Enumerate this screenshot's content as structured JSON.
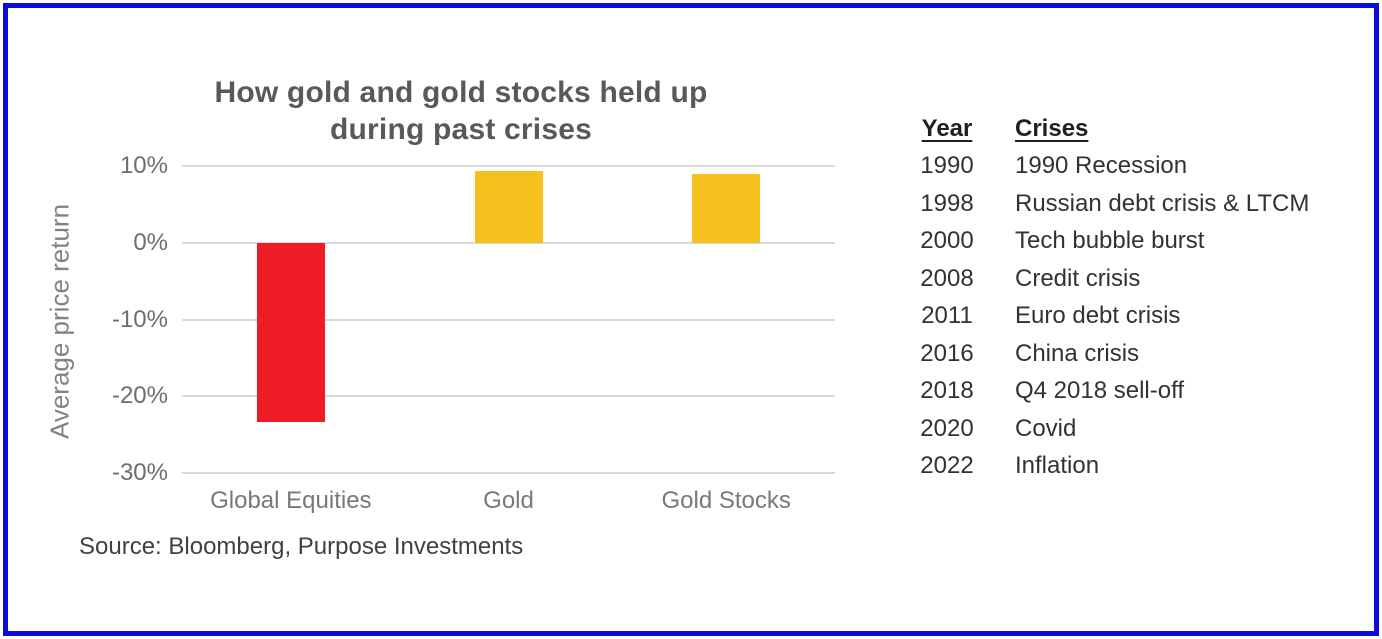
{
  "chart_data": {
    "type": "bar",
    "title": "How gold and gold stocks held up during past crises",
    "categories": [
      "Global Equities",
      "Gold",
      "Gold Stocks"
    ],
    "values": [
      -23.3,
      9.4,
      9.0
    ],
    "bar_colors": [
      "#ee1c25",
      "#f5c11d",
      "#f5c11d"
    ],
    "ylabel": "Average price return",
    "ylim": [
      -30,
      10
    ],
    "yticks": [
      10,
      0,
      -10,
      -20,
      -30
    ],
    "ytick_suffix": "%",
    "grid": true,
    "legend_position": "none",
    "source": "Source: Bloomberg, Purpose Investments"
  },
  "table": {
    "columns": [
      "Year",
      "Crises"
    ],
    "rows": [
      [
        "1990",
        "1990 Recession"
      ],
      [
        "1998",
        "Russian debt crisis & LTCM"
      ],
      [
        "2000",
        "Tech bubble burst"
      ],
      [
        "2008",
        "Credit crisis"
      ],
      [
        "2011",
        "Euro debt crisis"
      ],
      [
        "2016",
        "China crisis"
      ],
      [
        "2018",
        "Q4 2018 sell-off"
      ],
      [
        "2020",
        "Covid"
      ],
      [
        "2022",
        "Inflation"
      ]
    ]
  },
  "theme": {
    "frame_border_color": "#0b0bdb",
    "negative_bar_color": "#ee1c25",
    "positive_bar_color": "#f5c11d",
    "gridline_color": "#d9d9d9",
    "title_color": "#58595b",
    "axis_text_color": "#6d6e71",
    "background": "#ffffff"
  }
}
